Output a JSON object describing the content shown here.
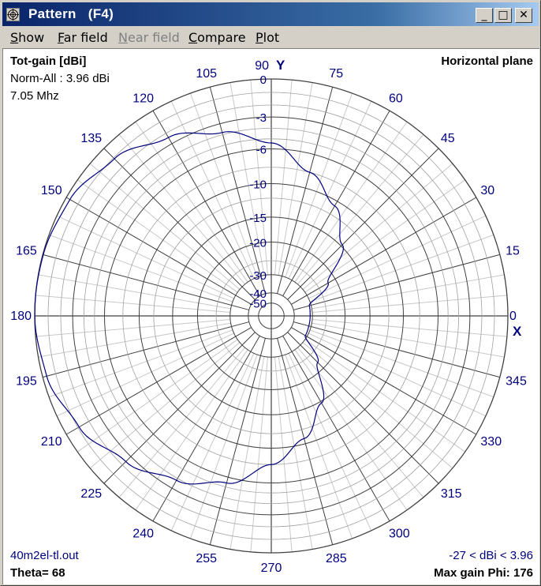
{
  "window": {
    "title": "Pattern   (F4)",
    "minimize_glyph": "_",
    "maximize_glyph": "□",
    "close_glyph": "✕"
  },
  "menu": [
    {
      "label": "Show",
      "underline": "S",
      "rest": "how",
      "enabled": true
    },
    {
      "label": "Far field",
      "underline": "F",
      "rest": "ar field",
      "enabled": true
    },
    {
      "label": "Near field",
      "underline": "N",
      "rest": "ear field",
      "enabled": false
    },
    {
      "label": "Compare",
      "underline": "C",
      "rest": "ompare",
      "enabled": true
    },
    {
      "label": "Plot",
      "underline": "P",
      "rest": "lot",
      "enabled": true
    }
  ],
  "info": {
    "gain_type": "Tot-gain [dBi]",
    "norm": "Norm-All : 3.96 dBi",
    "frequency": "7.05 Mhz",
    "plane": "Horizontal plane",
    "file": "40m2el-tl.out",
    "theta": "Theta= 68",
    "range": "-27 < dBi < 3.96",
    "max_gain_phi": "Max gain Phi: 176"
  },
  "colors": {
    "pattern": "#00007f",
    "label": "#00007f",
    "ring": "#404040",
    "minor_spoke": "#c8c8c8",
    "major_spoke": "#404040"
  },
  "chart_data": {
    "type": "polar",
    "plane": "horizontal",
    "angle_unit": "deg",
    "angle_ticks": [
      0,
      15,
      30,
      45,
      60,
      75,
      90,
      105,
      120,
      135,
      150,
      165,
      180,
      195,
      210,
      225,
      240,
      255,
      270,
      285,
      300,
      315,
      330,
      345
    ],
    "radial_ticks_db": [
      0,
      -3,
      -6,
      -10,
      -15,
      -20,
      -30,
      -40,
      -50
    ],
    "axis_x_label": "X",
    "axis_y_label": "Y",
    "max_gain_dbi": 3.96,
    "min_gain_dbi": -27,
    "max_gain_phi": 176,
    "series": [
      {
        "phi": [
          0,
          15,
          30,
          45,
          60,
          75,
          90,
          105,
          120,
          135,
          150,
          165,
          176,
          180,
          195,
          210,
          225,
          240,
          255,
          270,
          285,
          300,
          315,
          330,
          345,
          360
        ],
        "gain_db": [
          -31.0,
          -30.8,
          -22.0,
          -14.7,
          -10.7,
          -8.0,
          -5.4,
          -3.8,
          -2.4,
          -1.1,
          -0.3,
          -0.04,
          0.0,
          -0.01,
          -0.3,
          -1.1,
          -2.4,
          -3.8,
          -5.4,
          -8.0,
          -10.7,
          -14.7,
          -22.0,
          -30.8,
          -31.0,
          -31.0
        ]
      }
    ]
  }
}
